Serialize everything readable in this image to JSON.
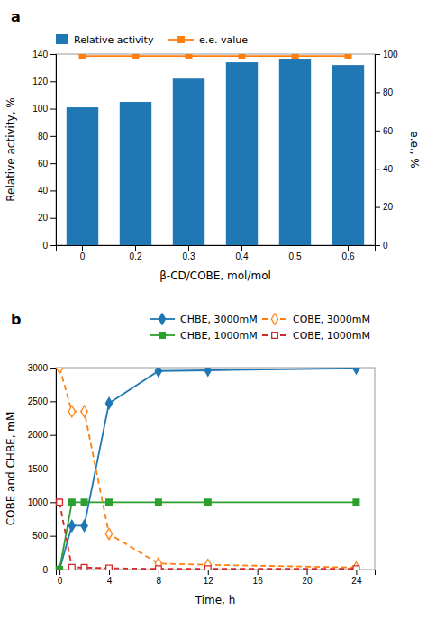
{
  "chart_data": [
    {
      "type": "bar",
      "title": "a",
      "categories": [
        "0",
        "0.2",
        "0.3",
        "0.4",
        "0.5",
        "0.6"
      ],
      "series": [
        {
          "name": "Relative activity",
          "type": "bar",
          "values": [
            101,
            105,
            122,
            134,
            136,
            132
          ]
        },
        {
          "name": "e.e. value",
          "type": "line",
          "axis": "y2",
          "marker": "square",
          "line_style": "solid",
          "values": [
            99,
            99,
            99,
            99,
            99,
            99
          ]
        }
      ],
      "xlabel": "β-CD/COBE, mol/mol",
      "ylabel": "Relative activity, %",
      "y2label": "e.e., %",
      "ylim": [
        0,
        140
      ],
      "yticks": [
        0,
        20,
        40,
        60,
        80,
        100,
        120,
        140
      ],
      "y2lim": [
        0,
        100
      ],
      "y2ticks": [
        0,
        20,
        40,
        60,
        80,
        100
      ],
      "legend": "upper left"
    },
    {
      "type": "line",
      "title": "b",
      "x": [
        0,
        1,
        2,
        4,
        8,
        12,
        24
      ],
      "series": [
        {
          "name": "CHBE, 3000mM",
          "marker": "diamond",
          "line_style": "solid",
          "values": [
            0,
            650,
            650,
            2470,
            2950,
            2960,
            2990
          ]
        },
        {
          "name": "COBE, 3000mM",
          "marker": "diamond-open",
          "line_style": "dashed",
          "values": [
            3000,
            2350,
            2350,
            530,
            90,
            70,
            30
          ]
        },
        {
          "name": "CHBE, 1000mM",
          "marker": "square",
          "line_style": "solid",
          "values": [
            0,
            1000,
            1000,
            1000,
            1000,
            1000,
            1000
          ]
        },
        {
          "name": "COBE, 1000mM",
          "marker": "square-open",
          "line_style": "dashed",
          "values": [
            1000,
            30,
            30,
            20,
            10,
            10,
            10
          ]
        }
      ],
      "xlabel": "Time, h",
      "ylabel": "COBE and CHBE, mM",
      "xlim": [
        -0.3,
        25.5
      ],
      "xticks": [
        0,
        4,
        8,
        12,
        16,
        20,
        24
      ],
      "ylim": [
        0,
        3000
      ],
      "yticks": [
        0,
        500,
        1000,
        1500,
        2000,
        2500,
        3000
      ],
      "legend": "upper right"
    }
  ]
}
